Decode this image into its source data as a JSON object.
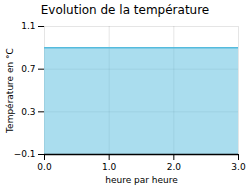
{
  "chart_data": {
    "type": "area",
    "title": "Evolution de la température",
    "xlabel": "heure par heure",
    "ylabel": "Température en °C",
    "x": [
      0,
      3
    ],
    "series": [
      {
        "values": [
          0.9,
          0.9
        ],
        "color": "#55bbdd"
      }
    ],
    "xlim": [
      0,
      3
    ],
    "ylim": [
      -0.1,
      1.1
    ],
    "xticks": [
      0,
      1,
      2,
      3
    ],
    "yticks": [
      -0.1,
      0.3,
      0.7,
      1.1
    ],
    "grid": true
  }
}
